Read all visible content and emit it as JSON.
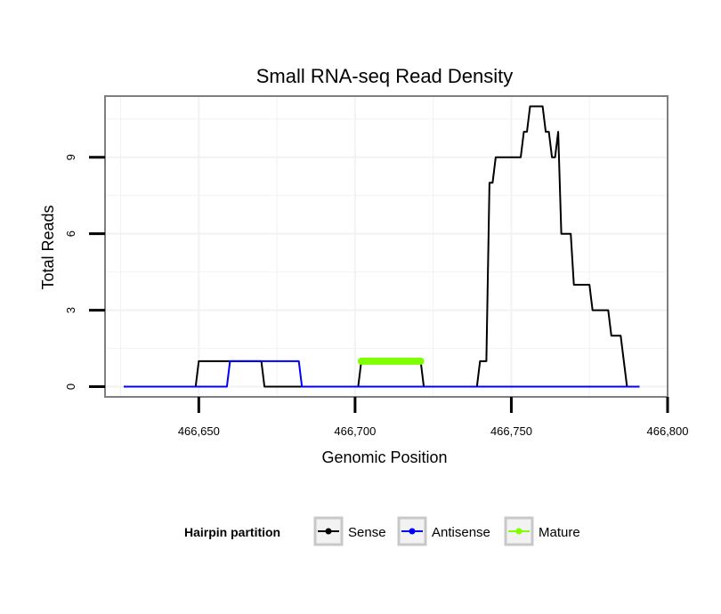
{
  "chart_data": {
    "type": "line",
    "title": "Small RNA-seq Read Density",
    "xlabel": "Genomic Position",
    "ylabel": "Total Reads",
    "xlim": [
      466620,
      466800
    ],
    "ylim": [
      -0.4,
      11.4
    ],
    "x_ticks": [
      466650,
      466700,
      466750,
      466800
    ],
    "x_tick_labels": [
      "466,650",
      "466,700",
      "466,750",
      "466,800"
    ],
    "y_ticks": [
      0,
      3,
      6,
      9
    ],
    "y_tick_labels": [
      "0",
      "3",
      "6",
      "9"
    ],
    "grid": true,
    "legend": {
      "title": "Hairpin partition",
      "position": "bottom",
      "entries": [
        {
          "name": "Sense",
          "color": "#000000"
        },
        {
          "name": "Antisense",
          "color": "#0000ff"
        },
        {
          "name": "Mature",
          "color": "#7fff00"
        }
      ]
    },
    "series": [
      {
        "name": "Sense",
        "color": "#000000",
        "points": [
          [
            466626,
            0
          ],
          [
            466649,
            0
          ],
          [
            466650,
            1
          ],
          [
            466670,
            1
          ],
          [
            466671,
            0
          ],
          [
            466701,
            0
          ],
          [
            466702,
            1
          ],
          [
            466721,
            1
          ],
          [
            466722,
            0
          ],
          [
            466739,
            0
          ],
          [
            466740,
            1
          ],
          [
            466742,
            1
          ],
          [
            466743,
            8
          ],
          [
            466744,
            8
          ],
          [
            466745,
            9
          ],
          [
            466753,
            9
          ],
          [
            466754,
            10
          ],
          [
            466755,
            10
          ],
          [
            466756,
            11
          ],
          [
            466759,
            11
          ],
          [
            466760,
            11
          ],
          [
            466761,
            10
          ],
          [
            466762,
            10
          ],
          [
            466763,
            9
          ],
          [
            466764,
            9
          ],
          [
            466765,
            10
          ],
          [
            466766,
            6
          ],
          [
            466769,
            6
          ],
          [
            466770,
            4
          ],
          [
            466775,
            4
          ],
          [
            466776,
            3
          ],
          [
            466781,
            3
          ],
          [
            466782,
            2
          ],
          [
            466785,
            2
          ],
          [
            466787,
            0
          ],
          [
            466791,
            0
          ]
        ]
      },
      {
        "name": "Antisense",
        "color": "#0000ff",
        "points": [
          [
            466626,
            0
          ],
          [
            466659,
            0
          ],
          [
            466660,
            1
          ],
          [
            466682,
            1
          ],
          [
            466683,
            0
          ],
          [
            466791,
            0
          ]
        ]
      },
      {
        "name": "Mature",
        "color": "#7fff00",
        "points": [
          [
            466702,
            1
          ],
          [
            466721,
            1
          ]
        ]
      }
    ]
  }
}
